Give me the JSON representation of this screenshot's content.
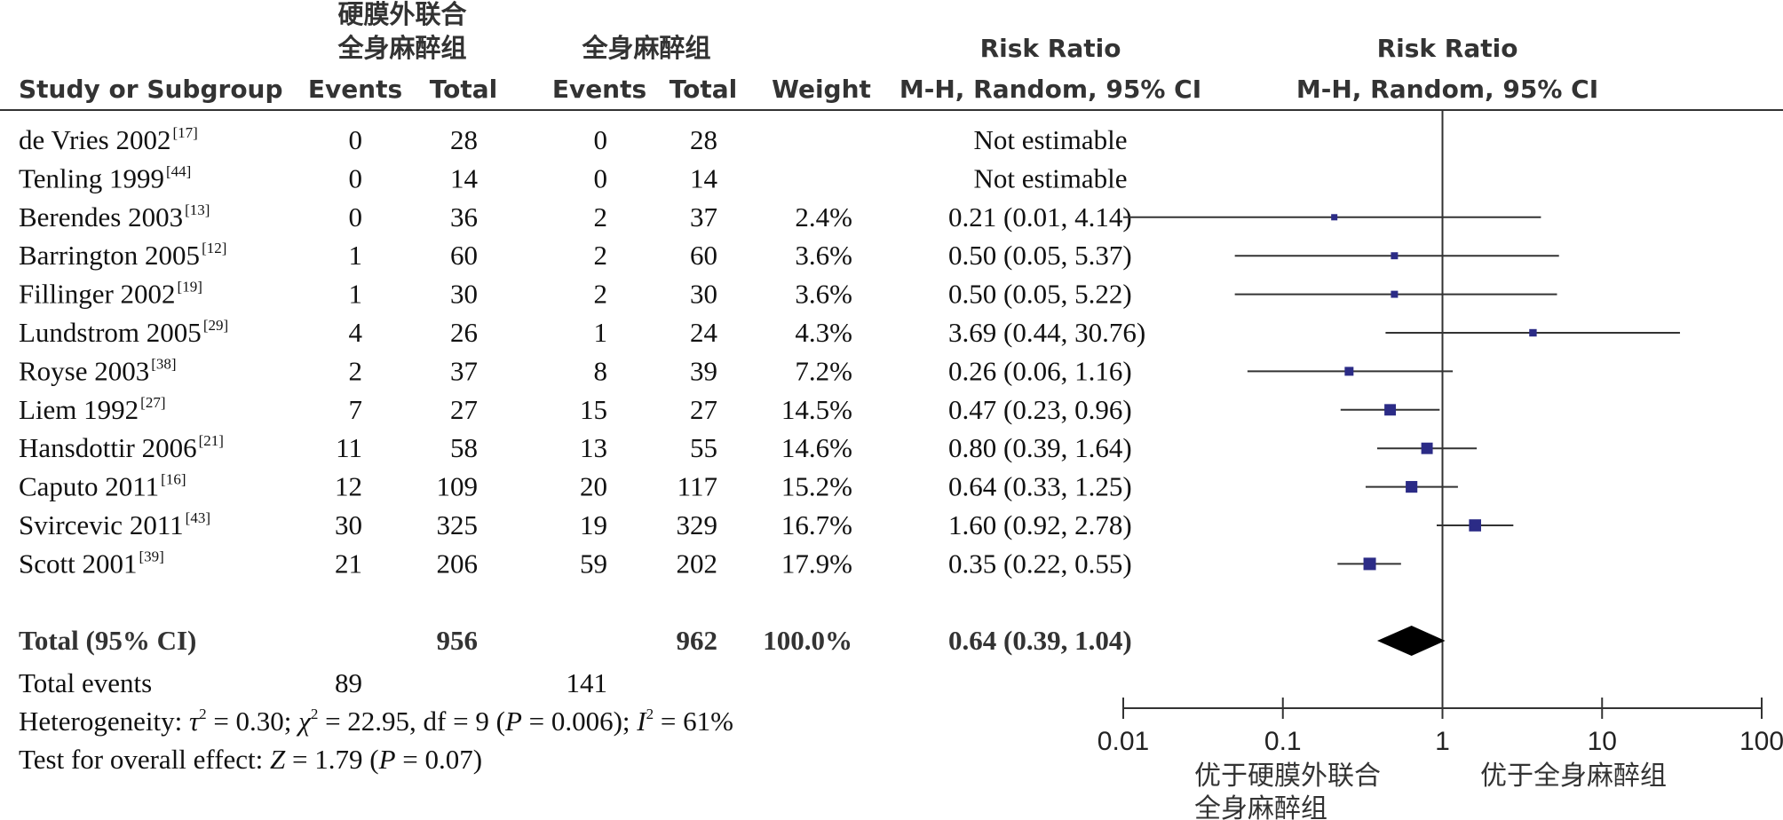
{
  "header": {
    "group1_line1": "硬膜外联合",
    "group1_line2": "全身麻醉组",
    "group2": "全身麻醉组",
    "study_col": "Study or Subgroup",
    "events1": "Events",
    "total1": "Total",
    "events2": "Events",
    "total2": "Total",
    "weight": "Weight",
    "rr_title": "Risk Ratio",
    "rr_method": "M-H, Random, 95% CI",
    "plot_title": "Risk Ratio",
    "plot_method": "M-H, Random, 95% CI"
  },
  "rows": [
    {
      "study": "de Vries 2002",
      "ref": "[17]",
      "e1": "0",
      "t1": "28",
      "e2": "0",
      "t2": "28",
      "weight": "",
      "ci_text": "Not estimable"
    },
    {
      "study": "Tenling 1999",
      "ref": "[44]",
      "e1": "0",
      "t1": "14",
      "e2": "0",
      "t2": "14",
      "weight": "",
      "ci_text": "Not estimable"
    },
    {
      "study": "Berendes 2003",
      "ref": "[13]",
      "e1": "0",
      "t1": "36",
      "e2": "2",
      "t2": "37",
      "weight": "2.4%",
      "ci_text": "0.21 (0.01, 4.14)"
    },
    {
      "study": "Barrington 2005",
      "ref": "[12]",
      "e1": "1",
      "t1": "60",
      "e2": "2",
      "t2": "60",
      "weight": "3.6%",
      "ci_text": "0.50 (0.05, 5.37)"
    },
    {
      "study": "Fillinger 2002",
      "ref": "[19]",
      "e1": "1",
      "t1": "30",
      "e2": "2",
      "t2": "30",
      "weight": "3.6%",
      "ci_text": "0.50 (0.05, 5.22)"
    },
    {
      "study": "Lundstrom 2005",
      "ref": "[29]",
      "e1": "4",
      "t1": "26",
      "e2": "1",
      "t2": "24",
      "weight": "4.3%",
      "ci_text": "3.69 (0.44, 30.76)"
    },
    {
      "study": "Royse 2003",
      "ref": "[38]",
      "e1": "2",
      "t1": "37",
      "e2": "8",
      "t2": "39",
      "weight": "7.2%",
      "ci_text": "0.26 (0.06, 1.16)"
    },
    {
      "study": "Liem 1992",
      "ref": "[27]",
      "e1": "7",
      "t1": "27",
      "e2": "15",
      "t2": "27",
      "weight": "14.5%",
      "ci_text": "0.47 (0.23, 0.96)"
    },
    {
      "study": "Hansdottir 2006",
      "ref": "[21]",
      "e1": "11",
      "t1": "58",
      "e2": "13",
      "t2": "55",
      "weight": "14.6%",
      "ci_text": "0.80 (0.39, 1.64)"
    },
    {
      "study": "Caputo 2011",
      "ref": "[16]",
      "e1": "12",
      "t1": "109",
      "e2": "20",
      "t2": "117",
      "weight": "15.2%",
      "ci_text": "0.64 (0.33, 1.25)"
    },
    {
      "study": "Svircevic 2011",
      "ref": "[43]",
      "e1": "30",
      "t1": "325",
      "e2": "19",
      "t2": "329",
      "weight": "16.7%",
      "ci_text": "1.60 (0.92, 2.78)"
    },
    {
      "study": "Scott 2001",
      "ref": "[39]",
      "e1": "21",
      "t1": "206",
      "e2": "59",
      "t2": "202",
      "weight": "17.9%",
      "ci_text": "0.35 (0.22, 0.55)"
    }
  ],
  "total_row": {
    "label": "Total (95% CI)",
    "t1": "956",
    "t2": "962",
    "weight": "100.0%",
    "ci_text": "0.64 (0.39, 1.04)"
  },
  "total_events": {
    "label": "Total events",
    "e1": "89",
    "e2": "141"
  },
  "heterogeneity": {
    "prefix": "Heterogeneity: ",
    "tau_symbol": "τ",
    "tau_value": " = 0.30; ",
    "chi_symbol": "χ",
    "chi_value": " = 22.95, df = 9 (",
    "p_symbol": "P",
    "p_value": " = 0.006); ",
    "i_symbol": "I",
    "i_value": " = 61%",
    "exp": "2"
  },
  "overall_effect": {
    "prefix": "Test for overall effect: ",
    "z_symbol": "Z",
    "z_value": " = 1.79 (",
    "p_symbol": "P",
    "p_value": " = 0.07)"
  },
  "axis": {
    "ticks": [
      "0.01",
      "0.1",
      "1",
      "10",
      "100"
    ],
    "favours_left_line1": "优于硬膜外联合",
    "favours_left_line2": "全身麻醉组",
    "favours_right": "优于全身麻醉组"
  },
  "colors": {
    "marker": "#2b2b86",
    "diamond": "#000000",
    "line": "#333333"
  },
  "chart_data": {
    "type": "forest",
    "scale": "log",
    "xlim": [
      0.01,
      100
    ],
    "studies": [
      {
        "name": "Berendes 2003",
        "rr": 0.21,
        "lower": 0.01,
        "upper": 4.14,
        "weight": 2.4
      },
      {
        "name": "Barrington 2005",
        "rr": 0.5,
        "lower": 0.05,
        "upper": 5.37,
        "weight": 3.6
      },
      {
        "name": "Fillinger 2002",
        "rr": 0.5,
        "lower": 0.05,
        "upper": 5.22,
        "weight": 3.6
      },
      {
        "name": "Lundstrom 2005",
        "rr": 3.69,
        "lower": 0.44,
        "upper": 30.76,
        "weight": 4.3
      },
      {
        "name": "Royse 2003",
        "rr": 0.26,
        "lower": 0.06,
        "upper": 1.16,
        "weight": 7.2
      },
      {
        "name": "Liem 1992",
        "rr": 0.47,
        "lower": 0.23,
        "upper": 0.96,
        "weight": 14.5
      },
      {
        "name": "Hansdottir 2006",
        "rr": 0.8,
        "lower": 0.39,
        "upper": 1.64,
        "weight": 14.6
      },
      {
        "name": "Caputo 2011",
        "rr": 0.64,
        "lower": 0.33,
        "upper": 1.25,
        "weight": 15.2
      },
      {
        "name": "Svircevic 2011",
        "rr": 1.6,
        "lower": 0.92,
        "upper": 2.78,
        "weight": 16.7
      },
      {
        "name": "Scott 2001",
        "rr": 0.35,
        "lower": 0.22,
        "upper": 0.55,
        "weight": 17.9
      }
    ],
    "pooled": {
      "rr": 0.64,
      "lower": 0.39,
      "upper": 1.04
    }
  }
}
